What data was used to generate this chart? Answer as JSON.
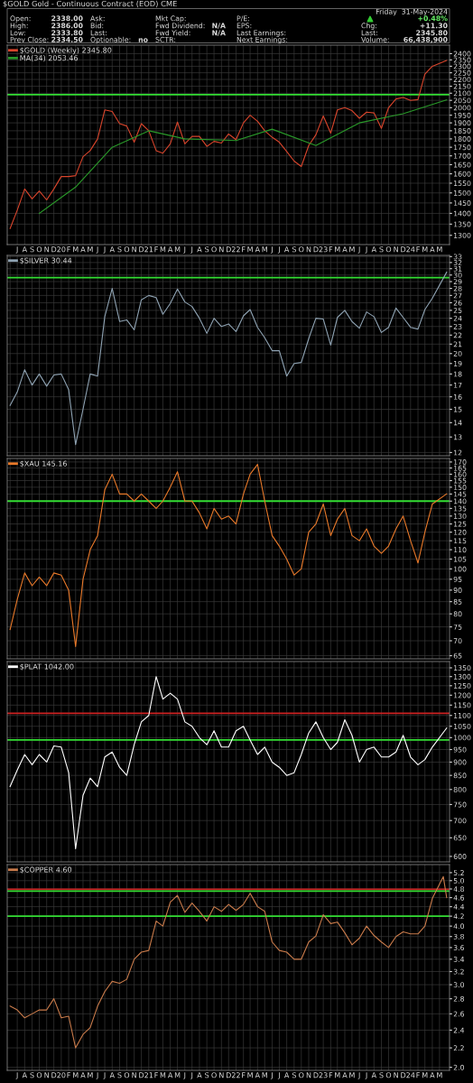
{
  "chart_data": [
    {
      "type": "other",
      "title": "$GOLD Gold - Continuous Contract (EOD) CME",
      "annotations": [
        "Open:",
        "2338.00",
        "High:",
        "2386.00",
        "Low:",
        "2333.80",
        "Prev Close:",
        "2334.50",
        "Ask:",
        "Bid:",
        "Last:",
        "Optionable:",
        "no",
        "Mkt Cap:",
        "Fwd Dividend:",
        "N/A",
        "Fwd Yield:",
        "N/A",
        "SCTR:",
        "P/E:",
        "EPS:",
        "Last Earnings:",
        "Next Earnings:",
        "Friday  31-May-2024",
        "+0.48%",
        "Chg:",
        "+11.30",
        "Last:",
        "2345.80",
        "Volume:",
        "66,438,900"
      ]
    },
    {
      "type": "line",
      "log": true,
      "grid": true,
      "legend": "top left",
      "xlim": [
        "2019-05-20",
        "2024-06-12"
      ],
      "ylim": [
        1260,
        2470
      ],
      "yticks": [
        1300,
        1350,
        1400,
        1450,
        1500,
        1550,
        1600,
        1650,
        1700,
        1750,
        1800,
        1850,
        1900,
        1950,
        2000,
        2050,
        2100,
        2150,
        2200,
        2250,
        2300,
        2350,
        2400
      ],
      "xticks": [
        {
          "value": "2019-07",
          "label": "J"
        },
        {
          "value": "2019-08",
          "label": "A"
        },
        {
          "value": "2019-09",
          "label": "S"
        },
        {
          "value": "2019-10",
          "label": "O"
        },
        {
          "value": "2019-11",
          "label": "N"
        },
        {
          "value": "2019-12",
          "label": "D"
        },
        {
          "value": "2020-01",
          "label": "20"
        },
        {
          "value": "2020-02",
          "label": "F"
        },
        {
          "value": "2020-03",
          "label": "M"
        },
        {
          "value": "2020-04",
          "label": "A"
        },
        {
          "value": "2020-05",
          "label": "M"
        },
        {
          "value": "2020-06",
          "label": "J"
        },
        {
          "value": "2020-07",
          "label": "J"
        },
        {
          "value": "2020-08",
          "label": "A"
        },
        {
          "value": "2020-09",
          "label": "S"
        },
        {
          "value": "2020-10",
          "label": "O"
        },
        {
          "value": "2020-11",
          "label": "N"
        },
        {
          "value": "2020-12",
          "label": "D"
        },
        {
          "value": "2021-01",
          "label": "21"
        },
        {
          "value": "2021-02",
          "label": "F"
        },
        {
          "value": "2021-03",
          "label": "M"
        },
        {
          "value": "2021-04",
          "label": "A"
        },
        {
          "value": "2021-05",
          "label": "M"
        },
        {
          "value": "2021-06",
          "label": "J"
        },
        {
          "value": "2021-07",
          "label": "J"
        },
        {
          "value": "2021-08",
          "label": "A"
        },
        {
          "value": "2021-09",
          "label": "S"
        },
        {
          "value": "2021-10",
          "label": "O"
        },
        {
          "value": "2021-11",
          "label": "N"
        },
        {
          "value": "2021-12",
          "label": "D"
        },
        {
          "value": "2022-01",
          "label": "22"
        },
        {
          "value": "2022-02",
          "label": "F"
        },
        {
          "value": "2022-03",
          "label": "M"
        },
        {
          "value": "2022-04",
          "label": "A"
        },
        {
          "value": "2022-05",
          "label": "M"
        },
        {
          "value": "2022-06",
          "label": "J"
        },
        {
          "value": "2022-07",
          "label": "J"
        },
        {
          "value": "2022-08",
          "label": "A"
        },
        {
          "value": "2022-09",
          "label": "S"
        },
        {
          "value": "2022-10",
          "label": "O"
        },
        {
          "value": "2022-11",
          "label": "N"
        },
        {
          "value": "2022-12",
          "label": "D"
        },
        {
          "value": "2023-01",
          "label": "23"
        },
        {
          "value": "2023-02",
          "label": "F"
        },
        {
          "value": "2023-03",
          "label": "M"
        },
        {
          "value": "2023-04",
          "label": "A"
        },
        {
          "value": "2023-05",
          "label": "M"
        },
        {
          "value": "2023-06",
          "label": "J"
        },
        {
          "value": "2023-07",
          "label": "J"
        },
        {
          "value": "2023-08",
          "label": "A"
        },
        {
          "value": "2023-09",
          "label": "S"
        },
        {
          "value": "2023-10",
          "label": "O"
        },
        {
          "value": "2023-11",
          "label": "N"
        },
        {
          "value": "2023-12",
          "label": "D"
        },
        {
          "value": "2024-01",
          "label": "24"
        },
        {
          "value": "2024-02",
          "label": "F"
        },
        {
          "value": "2024-03",
          "label": "M"
        },
        {
          "value": "2024-04",
          "label": "A"
        },
        {
          "value": "2024-05",
          "label": "M"
        }
      ],
      "x": [
        "2019-06",
        "2019-07",
        "2019-08",
        "2019-09",
        "2019-10",
        "2019-11",
        "2019-12",
        "2020-01",
        "2020-02",
        "2020-03",
        "2020-04",
        "2020-05",
        "2020-06",
        "2020-07",
        "2020-08",
        "2020-09",
        "2020-10",
        "2020-11",
        "2020-12",
        "2021-01",
        "2021-02",
        "2021-03",
        "2021-04",
        "2021-05",
        "2021-06",
        "2021-07",
        "2021-08",
        "2021-09",
        "2021-10",
        "2021-11",
        "2021-12",
        "2022-01",
        "2022-02",
        "2022-03",
        "2022-04",
        "2022-05",
        "2022-06",
        "2022-07",
        "2022-08",
        "2022-09",
        "2022-10",
        "2022-11",
        "2022-12",
        "2023-01",
        "2023-02",
        "2023-03",
        "2023-04",
        "2023-05",
        "2023-06",
        "2023-07",
        "2023-08",
        "2023-09",
        "2023-10",
        "2023-11",
        "2023-12",
        "2024-01",
        "2024-02",
        "2024-03",
        "2024-04",
        "2024-05-31"
      ],
      "series": [
        {
          "name": "$GOLD (Weekly) 2345.80",
          "color": "#d8452c",
          "values": [
            1330,
            1415,
            1520,
            1470,
            1510,
            1465,
            1520,
            1585,
            1585,
            1590,
            1695,
            1730,
            1800,
            1985,
            1975,
            1895,
            1880,
            1780,
            1895,
            1850,
            1730,
            1715,
            1770,
            1905,
            1770,
            1815,
            1815,
            1755,
            1785,
            1775,
            1830,
            1795,
            1900,
            1950,
            1910,
            1850,
            1810,
            1780,
            1725,
            1670,
            1640,
            1760,
            1825,
            1945,
            1835,
            1985,
            2000,
            1980,
            1930,
            1970,
            1965,
            1865,
            2000,
            2060,
            2070,
            2050,
            2055,
            2240,
            2300,
            2345.8
          ]
        },
        {
          "name": "MA(34) 2053.46",
          "color": "#2a9a2a",
          "x": [
            "2019-10",
            "2020-03",
            "2020-08",
            "2021-01",
            "2021-06",
            "2022-01",
            "2022-06",
            "2022-12",
            "2023-06",
            "2023-12",
            "2024-05-31"
          ],
          "values": [
            1400,
            1530,
            1750,
            1850,
            1800,
            1790,
            1860,
            1760,
            1900,
            1960,
            2053.46
          ]
        }
      ],
      "ref_lines": [
        {
          "axis": "y",
          "value": 2090,
          "color": "#33dd33"
        }
      ]
    },
    {
      "type": "line",
      "log": true,
      "grid": true,
      "legend": "top left",
      "tick_labels": "y",
      "xlim": [
        "2019-05-20",
        "2024-06-12"
      ],
      "ylim": [
        11.8,
        33.2
      ],
      "yticks": [
        12,
        13,
        14,
        15,
        16,
        17,
        18,
        19,
        20,
        21,
        22,
        23,
        24,
        25,
        26,
        27,
        28,
        29,
        30,
        31,
        32,
        33
      ],
      "x": [
        "2019-06",
        "2019-07",
        "2019-08",
        "2019-09",
        "2019-10",
        "2019-11",
        "2019-12",
        "2020-01",
        "2020-02",
        "2020-03",
        "2020-04",
        "2020-05",
        "2020-06",
        "2020-07",
        "2020-08",
        "2020-09",
        "2020-10",
        "2020-11",
        "2020-12",
        "2021-01",
        "2021-02",
        "2021-03",
        "2021-04",
        "2021-05",
        "2021-06",
        "2021-07",
        "2021-08",
        "2021-09",
        "2021-10",
        "2021-11",
        "2021-12",
        "2022-01",
        "2022-02",
        "2022-03",
        "2022-04",
        "2022-05",
        "2022-06",
        "2022-07",
        "2022-08",
        "2022-09",
        "2022-10",
        "2022-11",
        "2022-12",
        "2023-01",
        "2023-02",
        "2023-03",
        "2023-04",
        "2023-05",
        "2023-06",
        "2023-07",
        "2023-08",
        "2023-09",
        "2023-10",
        "2023-11",
        "2023-12",
        "2024-01",
        "2024-02",
        "2024-03",
        "2024-04",
        "2024-05-31"
      ],
      "series": [
        {
          "name": "$SILVER 30.44",
          "color": "#8fa3b3",
          "values": [
            15.3,
            16.4,
            18.4,
            17.0,
            18.0,
            16.9,
            17.9,
            18.0,
            16.6,
            12.5,
            15.0,
            18.0,
            17.8,
            24.2,
            28.0,
            23.6,
            23.8,
            22.6,
            26.4,
            27.0,
            26.7,
            24.5,
            25.9,
            27.9,
            26.1,
            25.5,
            24.0,
            22.2,
            24.0,
            23.0,
            23.3,
            22.4,
            24.3,
            25.1,
            22.9,
            21.7,
            20.3,
            20.3,
            17.8,
            19.0,
            19.1,
            21.6,
            24.0,
            23.9,
            20.9,
            24.1,
            25.0,
            23.6,
            22.8,
            24.8,
            24.2,
            22.3,
            22.9,
            25.3,
            24.1,
            22.9,
            22.7,
            25.1,
            26.6,
            30.44
          ]
        }
      ],
      "ref_lines": [
        {
          "axis": "y",
          "value": 29.6,
          "color": "#33dd33"
        }
      ]
    },
    {
      "type": "line",
      "log": true,
      "grid": true,
      "legend": "top left",
      "tick_labels": "y",
      "xlim": [
        "2019-05-20",
        "2024-06-12"
      ],
      "ylim": [
        64,
        173
      ],
      "yticks": [
        65,
        70,
        75,
        80,
        85,
        90,
        95,
        100,
        105,
        110,
        115,
        120,
        125,
        130,
        135,
        140,
        145,
        150,
        155,
        160,
        165,
        170
      ],
      "x": [
        "2019-06",
        "2019-07",
        "2019-08",
        "2019-09",
        "2019-10",
        "2019-11",
        "2019-12",
        "2020-01",
        "2020-02",
        "2020-03",
        "2020-04",
        "2020-05",
        "2020-06",
        "2020-07",
        "2020-08",
        "2020-09",
        "2020-10",
        "2020-11",
        "2020-12",
        "2021-01",
        "2021-02",
        "2021-03",
        "2021-04",
        "2021-05",
        "2021-06",
        "2021-07",
        "2021-08",
        "2021-09",
        "2021-10",
        "2021-11",
        "2021-12",
        "2022-01",
        "2022-02",
        "2022-03",
        "2022-04",
        "2022-05",
        "2022-06",
        "2022-07",
        "2022-08",
        "2022-09",
        "2022-10",
        "2022-11",
        "2022-12",
        "2023-01",
        "2023-02",
        "2023-03",
        "2023-04",
        "2023-05",
        "2023-06",
        "2023-07",
        "2023-08",
        "2023-09",
        "2023-10",
        "2023-11",
        "2023-12",
        "2024-01",
        "2024-02",
        "2024-03",
        "2024-04",
        "2024-05-31"
      ],
      "series": [
        {
          "name": "$XAU 145.16",
          "color": "#e8792a",
          "values": [
            74,
            86,
            98,
            92,
            96,
            92,
            98,
            97,
            90,
            68,
            95,
            110,
            118,
            148,
            160,
            145,
            145,
            140,
            145,
            140,
            135,
            140,
            150,
            162,
            140,
            140,
            132,
            122,
            135,
            128,
            130,
            125,
            145,
            160,
            168,
            140,
            118,
            112,
            105,
            97,
            100,
            120,
            125,
            138,
            118,
            128,
            135,
            118,
            115,
            122,
            112,
            108,
            112,
            122,
            130,
            115,
            103,
            120,
            138,
            145.16
          ]
        }
      ],
      "ref_lines": [
        {
          "axis": "y",
          "value": 140,
          "color": "#33dd33"
        }
      ]
    },
    {
      "type": "line",
      "log": true,
      "grid": true,
      "legend": "top left",
      "tick_labels": "y",
      "xlim": [
        "2019-05-20",
        "2024-06-12"
      ],
      "ylim": [
        586,
        1387
      ],
      "yticks": [
        600,
        650,
        700,
        750,
        800,
        850,
        900,
        950,
        1000,
        1050,
        1100,
        1150,
        1200,
        1250,
        1300,
        1350
      ],
      "x": [
        "2019-06",
        "2019-07",
        "2019-08",
        "2019-09",
        "2019-10",
        "2019-11",
        "2019-12",
        "2020-01",
        "2020-02",
        "2020-03",
        "2020-04",
        "2020-05",
        "2020-06",
        "2020-07",
        "2020-08",
        "2020-09",
        "2020-10",
        "2020-11",
        "2020-12",
        "2021-01",
        "2021-02",
        "2021-03",
        "2021-04",
        "2021-05",
        "2021-06",
        "2021-07",
        "2021-08",
        "2021-09",
        "2021-10",
        "2021-11",
        "2021-12",
        "2022-01",
        "2022-02",
        "2022-03",
        "2022-04",
        "2022-05",
        "2022-06",
        "2022-07",
        "2022-08",
        "2022-09",
        "2022-10",
        "2022-11",
        "2022-12",
        "2023-01",
        "2023-02",
        "2023-03",
        "2023-04",
        "2023-05",
        "2023-06",
        "2023-07",
        "2023-08",
        "2023-09",
        "2023-10",
        "2023-11",
        "2023-12",
        "2024-01",
        "2024-02",
        "2024-03",
        "2024-04",
        "2024-05-31"
      ],
      "series": [
        {
          "name": "$PLAT 1042.00",
          "color": "#ffffff",
          "values": [
            810,
            870,
            930,
            890,
            930,
            900,
            965,
            960,
            860,
            620,
            780,
            840,
            810,
            920,
            940,
            880,
            850,
            970,
            1070,
            1100,
            1300,
            1180,
            1210,
            1180,
            1070,
            1050,
            1000,
            970,
            1030,
            960,
            960,
            1030,
            1050,
            990,
            930,
            960,
            900,
            880,
            850,
            860,
            930,
            1020,
            1070,
            1000,
            950,
            980,
            1080,
            1010,
            900,
            950,
            960,
            920,
            920,
            940,
            1010,
            920,
            890,
            910,
            960,
            1042
          ]
        }
      ],
      "ref_lines": [
        {
          "axis": "y",
          "value": 1110,
          "color": "#cc2222"
        },
        {
          "axis": "y",
          "value": 990,
          "color": "#33dd33"
        }
      ]
    },
    {
      "type": "line",
      "log": true,
      "grid": true,
      "legend": "top left",
      "xlim": [
        "2019-05-20",
        "2024-06-12"
      ],
      "ylim": [
        1.97,
        5.41
      ],
      "yticks": [
        {
          "value": 2.0,
          "label": "2.0"
        },
        2.2,
        2.4,
        2.6,
        2.8,
        {
          "value": 3.0,
          "label": "3.0"
        },
        3.2,
        3.4,
        3.6,
        3.8,
        {
          "value": 4.0,
          "label": "4.0"
        },
        4.2,
        4.4,
        4.6,
        4.8,
        {
          "value": 5.0,
          "label": "5.0"
        },
        5.2
      ],
      "xticks": [
        {
          "value": "2019-07",
          "label": "J"
        },
        {
          "value": "2019-08",
          "label": "A"
        },
        {
          "value": "2019-09",
          "label": "S"
        },
        {
          "value": "2019-10",
          "label": "O"
        },
        {
          "value": "2019-11",
          "label": "N"
        },
        {
          "value": "2019-12",
          "label": "D"
        },
        {
          "value": "2020-01",
          "label": "20"
        },
        {
          "value": "2020-02",
          "label": "F"
        },
        {
          "value": "2020-03",
          "label": "M"
        },
        {
          "value": "2020-04",
          "label": "A"
        },
        {
          "value": "2020-05",
          "label": "M"
        },
        {
          "value": "2020-06",
          "label": "J"
        },
        {
          "value": "2020-07",
          "label": "J"
        },
        {
          "value": "2020-08",
          "label": "A"
        },
        {
          "value": "2020-09",
          "label": "S"
        },
        {
          "value": "2020-10",
          "label": "O"
        },
        {
          "value": "2020-11",
          "label": "N"
        },
        {
          "value": "2020-12",
          "label": "D"
        },
        {
          "value": "2021-01",
          "label": "21"
        },
        {
          "value": "2021-02",
          "label": "F"
        },
        {
          "value": "2021-03",
          "label": "M"
        },
        {
          "value": "2021-04",
          "label": "A"
        },
        {
          "value": "2021-05",
          "label": "M"
        },
        {
          "value": "2021-06",
          "label": "J"
        },
        {
          "value": "2021-07",
          "label": "J"
        },
        {
          "value": "2021-08",
          "label": "A"
        },
        {
          "value": "2021-09",
          "label": "S"
        },
        {
          "value": "2021-10",
          "label": "O"
        },
        {
          "value": "2021-11",
          "label": "N"
        },
        {
          "value": "2021-12",
          "label": "D"
        },
        {
          "value": "2022-01",
          "label": "22"
        },
        {
          "value": "2022-02",
          "label": "F"
        },
        {
          "value": "2022-03",
          "label": "M"
        },
        {
          "value": "2022-04",
          "label": "A"
        },
        {
          "value": "2022-05",
          "label": "M"
        },
        {
          "value": "2022-06",
          "label": "J"
        },
        {
          "value": "2022-07",
          "label": "J"
        },
        {
          "value": "2022-08",
          "label": "A"
        },
        {
          "value": "2022-09",
          "label": "S"
        },
        {
          "value": "2022-10",
          "label": "O"
        },
        {
          "value": "2022-11",
          "label": "N"
        },
        {
          "value": "2022-12",
          "label": "D"
        },
        {
          "value": "2023-01",
          "label": "23"
        },
        {
          "value": "2023-02",
          "label": "F"
        },
        {
          "value": "2023-03",
          "label": "M"
        },
        {
          "value": "2023-04",
          "label": "A"
        },
        {
          "value": "2023-05",
          "label": "M"
        },
        {
          "value": "2023-06",
          "label": "J"
        },
        {
          "value": "2023-07",
          "label": "J"
        },
        {
          "value": "2023-08",
          "label": "A"
        },
        {
          "value": "2023-09",
          "label": "S"
        },
        {
          "value": "2023-10",
          "label": "O"
        },
        {
          "value": "2023-11",
          "label": "N"
        },
        {
          "value": "2023-12",
          "label": "D"
        },
        {
          "value": "2024-01",
          "label": "24"
        },
        {
          "value": "2024-02",
          "label": "F"
        },
        {
          "value": "2024-03",
          "label": "M"
        },
        {
          "value": "2024-04",
          "label": "A"
        },
        {
          "value": "2024-05",
          "label": "M"
        }
      ],
      "x": [
        "2019-06",
        "2019-07",
        "2019-08",
        "2019-09",
        "2019-10",
        "2019-11",
        "2019-12",
        "2020-01",
        "2020-02",
        "2020-03",
        "2020-04",
        "2020-05",
        "2020-06",
        "2020-07",
        "2020-08",
        "2020-09",
        "2020-10",
        "2020-11",
        "2020-12",
        "2021-01",
        "2021-02",
        "2021-03",
        "2021-04",
        "2021-05",
        "2021-06",
        "2021-07",
        "2021-08",
        "2021-09",
        "2021-10",
        "2021-11",
        "2021-12",
        "2022-01",
        "2022-02",
        "2022-03",
        "2022-04",
        "2022-05",
        "2022-06",
        "2022-07",
        "2022-08",
        "2022-09",
        "2022-10",
        "2022-11",
        "2022-12",
        "2023-01",
        "2023-02",
        "2023-03",
        "2023-04",
        "2023-05",
        "2023-06",
        "2023-07",
        "2023-08",
        "2023-09",
        "2023-10",
        "2023-11",
        "2023-12",
        "2024-01",
        "2024-02",
        "2024-03",
        "2024-04",
        "2024-05-17",
        "2024-05-31"
      ],
      "series": [
        {
          "name": "$COPPER 4.60",
          "color": "#c97b4b",
          "values": [
            2.7,
            2.65,
            2.55,
            2.6,
            2.65,
            2.65,
            2.8,
            2.55,
            2.57,
            2.2,
            2.35,
            2.43,
            2.7,
            2.9,
            3.05,
            3.02,
            3.08,
            3.4,
            3.52,
            3.55,
            4.1,
            4.0,
            4.5,
            4.65,
            4.28,
            4.48,
            4.3,
            4.1,
            4.4,
            4.3,
            4.45,
            4.32,
            4.45,
            4.7,
            4.4,
            4.3,
            3.7,
            3.55,
            3.52,
            3.4,
            3.4,
            3.7,
            3.81,
            4.23,
            4.05,
            4.08,
            3.87,
            3.65,
            3.77,
            4.0,
            3.82,
            3.7,
            3.6,
            3.8,
            3.89,
            3.85,
            3.85,
            4.0,
            4.58,
            5.1,
            4.6
          ]
        }
      ],
      "ref_lines": [
        {
          "axis": "y",
          "value": 4.79,
          "color": "#cc2222"
        },
        {
          "axis": "y",
          "value": 4.75,
          "color": "#33dd33"
        },
        {
          "axis": "y",
          "value": 4.2,
          "color": "#33dd33"
        }
      ]
    }
  ]
}
